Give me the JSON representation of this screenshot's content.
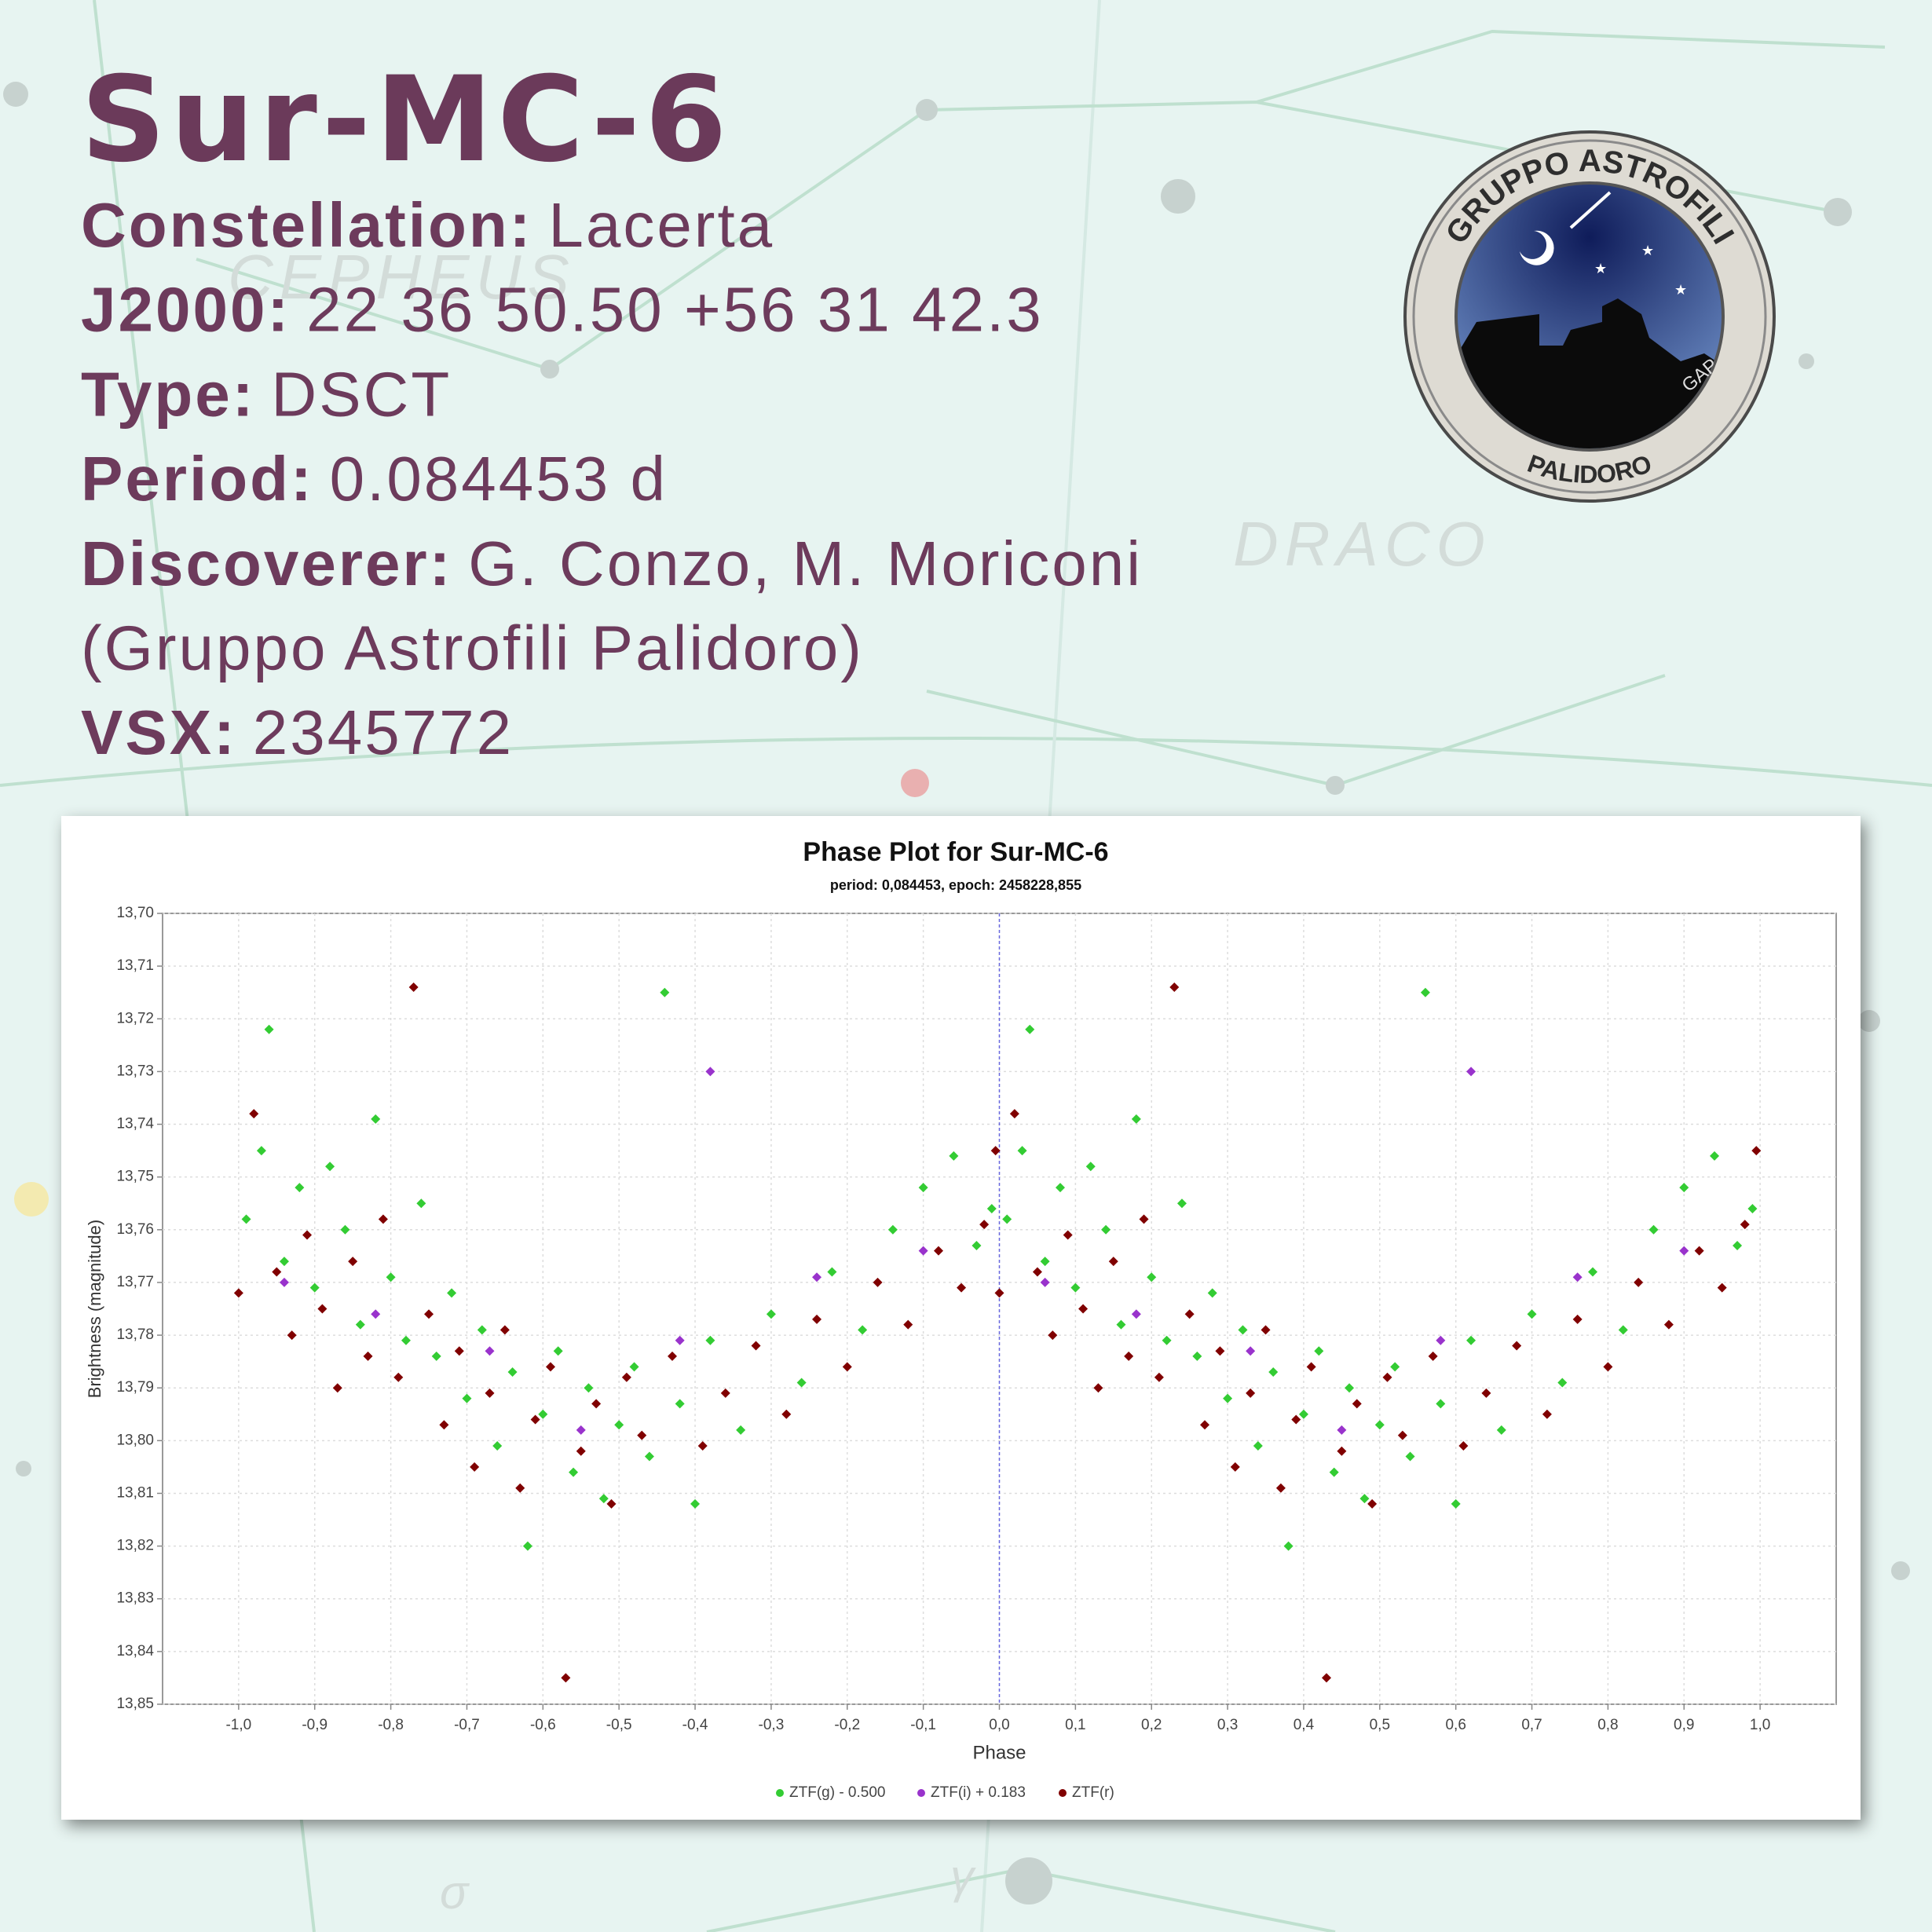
{
  "title": "Sur-MC-6",
  "info": [
    {
      "label": "Constellation:",
      "value": "Lacerta"
    },
    {
      "label": "J2000:",
      "value": "22 36 50.50 +56 31 42.3"
    },
    {
      "label": "Type:",
      "value": "DSCT"
    },
    {
      "label": "Period:",
      "value": "0.084453 d"
    },
    {
      "label": "Discoverer:",
      "value": "G. Conzo, M. Moriconi"
    },
    {
      "value": "(Gruppo Astrofili Palidoro)"
    },
    {
      "label": "VSX:",
      "value": "2345772"
    }
  ],
  "logo": {
    "top_text": "GRUPPO ASTROFILI",
    "bottom_text": "PALIDORO",
    "side_text": "GAP"
  },
  "background_labels": [
    "CEPHEUS",
    "DRACO",
    "σ",
    "γ"
  ],
  "chart_data": {
    "type": "scatter",
    "title": "Phase Plot for Sur-MC-6",
    "subtitle": "period: 0,084453, epoch: 2458228,855",
    "x_label": "Phase",
    "y_label": "Brightness (magnitude)",
    "xlim": [
      -1.1,
      1.1
    ],
    "ylim": [
      13.7,
      13.85
    ],
    "y_inverted": true,
    "grid": true,
    "zero_line": true,
    "legend": "bottom",
    "xticks": [
      {
        "value": -1,
        "label": "-1,0"
      },
      {
        "value": -0.9,
        "label": "-0,9"
      },
      {
        "value": -0.8,
        "label": "-0,8"
      },
      {
        "value": -0.7,
        "label": "-0,7"
      },
      {
        "value": -0.6,
        "label": "-0,6"
      },
      {
        "value": -0.5,
        "label": "-0,5"
      },
      {
        "value": -0.4,
        "label": "-0,4"
      },
      {
        "value": -0.3,
        "label": "-0,3"
      },
      {
        "value": -0.2,
        "label": "-0,2"
      },
      {
        "value": -0.1,
        "label": "-0,1"
      },
      {
        "value": 0,
        "label": "0,0"
      },
      {
        "value": 0.1,
        "label": "0,1"
      },
      {
        "value": 0.2,
        "label": "0,2"
      },
      {
        "value": 0.3,
        "label": "0,3"
      },
      {
        "value": 0.4,
        "label": "0,4"
      },
      {
        "value": 0.5,
        "label": "0,5"
      },
      {
        "value": 0.6,
        "label": "0,6"
      },
      {
        "value": 0.7,
        "label": "0,7"
      },
      {
        "value": 0.8,
        "label": "0,8"
      },
      {
        "value": 0.9,
        "label": "0,9"
      },
      {
        "value": 1,
        "label": "1,0"
      }
    ],
    "yticks": [
      {
        "value": 13.7,
        "label": "13,70"
      },
      {
        "value": 13.71,
        "label": "13,71"
      },
      {
        "value": 13.72,
        "label": "13,72"
      },
      {
        "value": 13.73,
        "label": "13,73"
      },
      {
        "value": 13.74,
        "label": "13,74"
      },
      {
        "value": 13.75,
        "label": "13,75"
      },
      {
        "value": 13.76,
        "label": "13,76"
      },
      {
        "value": 13.77,
        "label": "13,77"
      },
      {
        "value": 13.78,
        "label": "13,78"
      },
      {
        "value": 13.79,
        "label": "13,79"
      },
      {
        "value": 13.8,
        "label": "13,80"
      },
      {
        "value": 13.81,
        "label": "13,81"
      },
      {
        "value": 13.82,
        "label": "13,82"
      },
      {
        "value": 13.83,
        "label": "13,83"
      },
      {
        "value": 13.84,
        "label": "13,84"
      },
      {
        "value": 13.85,
        "label": "13,85"
      }
    ],
    "series": [
      {
        "name": "ZTF(g) - 0.500",
        "color": "#33cc33",
        "x": [
          -0.99,
          -0.97,
          -0.96,
          -0.94,
          -0.92,
          -0.9,
          -0.88,
          -0.86,
          -0.84,
          -0.82,
          -0.8,
          -0.78,
          -0.76,
          -0.74,
          -0.72,
          -0.7,
          -0.68,
          -0.66,
          -0.64,
          -0.62,
          -0.6,
          -0.58,
          -0.56,
          -0.54,
          -0.52,
          -0.5,
          -0.48,
          -0.46,
          -0.44,
          -0.42,
          -0.4,
          -0.38,
          -0.34,
          -0.3,
          -0.26,
          -0.22,
          -0.18,
          -0.14,
          -0.1,
          -0.06,
          -0.03,
          -0.01,
          0.01,
          0.03,
          0.04,
          0.06,
          0.08,
          0.1,
          0.12,
          0.14,
          0.16,
          0.18,
          0.2,
          0.22,
          0.24,
          0.26,
          0.28,
          0.3,
          0.32,
          0.34,
          0.36,
          0.38,
          0.4,
          0.42,
          0.44,
          0.46,
          0.48,
          0.5,
          0.52,
          0.54,
          0.56,
          0.58,
          0.6,
          0.62,
          0.66,
          0.7,
          0.74,
          0.78,
          0.82,
          0.86,
          0.9,
          0.94,
          0.97,
          0.99
        ],
        "values": [
          13.758,
          13.745,
          13.722,
          13.766,
          13.752,
          13.771,
          13.748,
          13.76,
          13.778,
          13.739,
          13.769,
          13.781,
          13.755,
          13.784,
          13.772,
          13.792,
          13.779,
          13.801,
          13.787,
          13.82,
          13.795,
          13.783,
          13.806,
          13.79,
          13.811,
          13.797,
          13.786,
          13.803,
          13.715,
          13.793,
          13.812,
          13.781,
          13.798,
          13.776,
          13.789,
          13.768,
          13.779,
          13.76,
          13.752,
          13.746,
          13.763,
          13.756,
          13.758,
          13.745,
          13.722,
          13.766,
          13.752,
          13.771,
          13.748,
          13.76,
          13.778,
          13.739,
          13.769,
          13.781,
          13.755,
          13.784,
          13.772,
          13.792,
          13.779,
          13.801,
          13.787,
          13.82,
          13.795,
          13.783,
          13.806,
          13.79,
          13.811,
          13.797,
          13.786,
          13.803,
          13.715,
          13.793,
          13.812,
          13.781,
          13.798,
          13.776,
          13.789,
          13.768,
          13.779,
          13.76,
          13.752,
          13.746,
          13.763,
          13.756
        ]
      },
      {
        "name": "ZTF(i) + 0.183",
        "color": "#9933cc",
        "x": [
          -0.94,
          -0.82,
          -0.67,
          -0.55,
          -0.42,
          -0.38,
          -0.24,
          -0.1,
          0.06,
          0.18,
          0.33,
          0.45,
          0.58,
          0.62,
          0.76,
          0.9
        ],
        "values": [
          13.77,
          13.776,
          13.783,
          13.798,
          13.781,
          13.73,
          13.769,
          13.764,
          13.77,
          13.776,
          13.783,
          13.798,
          13.781,
          13.73,
          13.769,
          13.764
        ]
      },
      {
        "name": "ZTF(r)",
        "color": "#800000",
        "x": [
          -1,
          -0.98,
          -0.95,
          -0.93,
          -0.91,
          -0.89,
          -0.87,
          -0.85,
          -0.83,
          -0.81,
          -0.79,
          -0.77,
          -0.75,
          -0.73,
          -0.71,
          -0.69,
          -0.67,
          -0.65,
          -0.63,
          -0.61,
          -0.59,
          -0.57,
          -0.55,
          -0.53,
          -0.51,
          -0.49,
          -0.47,
          -0.43,
          -0.39,
          -0.36,
          -0.32,
          -0.28,
          -0.24,
          -0.2,
          -0.16,
          -0.12,
          -0.08,
          -0.05,
          -0.02,
          -0.005,
          0,
          0.02,
          0.05,
          0.07,
          0.09,
          0.11,
          0.13,
          0.15,
          0.17,
          0.19,
          0.21,
          0.23,
          0.25,
          0.27,
          0.29,
          0.31,
          0.33,
          0.35,
          0.37,
          0.39,
          0.41,
          0.43,
          0.45,
          0.47,
          0.49,
          0.51,
          0.53,
          0.57,
          0.61,
          0.64,
          0.68,
          0.72,
          0.76,
          0.8,
          0.84,
          0.88,
          0.92,
          0.95,
          0.98,
          0.995
        ],
        "values": [
          13.772,
          13.738,
          13.768,
          13.78,
          13.761,
          13.775,
          13.79,
          13.766,
          13.784,
          13.758,
          13.788,
          13.714,
          13.776,
          13.797,
          13.783,
          13.805,
          13.791,
          13.779,
          13.809,
          13.796,
          13.786,
          13.845,
          13.802,
          13.793,
          13.812,
          13.788,
          13.799,
          13.784,
          13.801,
          13.791,
          13.782,
          13.795,
          13.777,
          13.786,
          13.77,
          13.778,
          13.764,
          13.771,
          13.759,
          13.745,
          13.772,
          13.738,
          13.768,
          13.78,
          13.761,
          13.775,
          13.79,
          13.766,
          13.784,
          13.758,
          13.788,
          13.714,
          13.776,
          13.797,
          13.783,
          13.805,
          13.791,
          13.779,
          13.809,
          13.796,
          13.786,
          13.845,
          13.802,
          13.793,
          13.812,
          13.788,
          13.799,
          13.784,
          13.801,
          13.791,
          13.782,
          13.795,
          13.777,
          13.786,
          13.77,
          13.778,
          13.764,
          13.771,
          13.759,
          13.745
        ]
      }
    ]
  }
}
